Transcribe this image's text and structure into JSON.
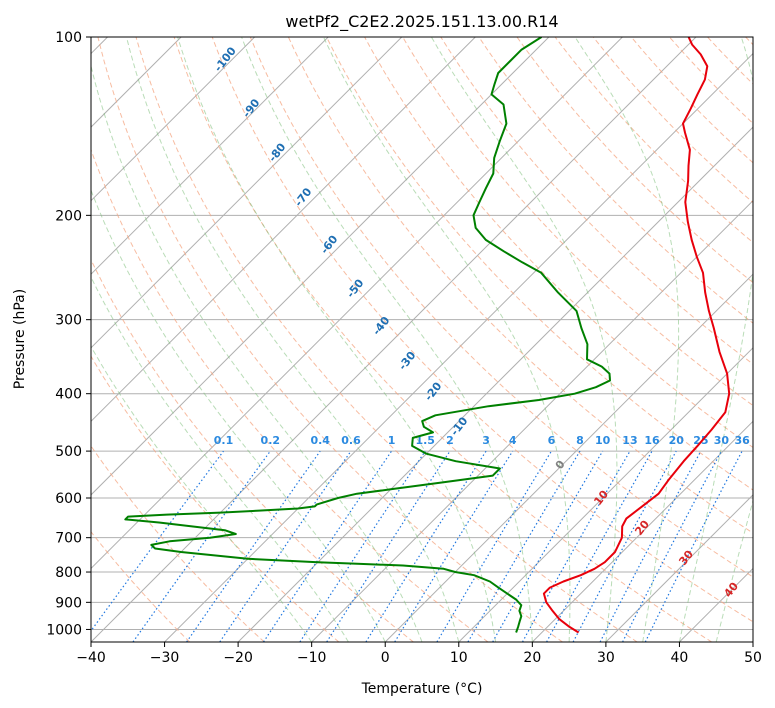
{
  "chart_data": {
    "type": "line",
    "title": "wetPf2_C2E2.2025.151.13.00.R14",
    "xlabel": "Temperature (°C)",
    "ylabel": "Pressure (hPa)",
    "xlim": [
      -40,
      50
    ],
    "ylim": [
      1050,
      100
    ],
    "x_scale": "linear, skewed isotherms",
    "y_scale": "log",
    "grid": true,
    "x_ticks": [
      "−40",
      "−30",
      "−20",
      "−10",
      "0",
      "10",
      "20",
      "30",
      "40",
      "50"
    ],
    "y_ticks": [
      "100",
      "200",
      "300",
      "400",
      "500",
      "600",
      "700",
      "800",
      "900",
      "1000"
    ],
    "series": [
      {
        "color": "#e8000b",
        "points": [
          [
            1012,
            25
          ],
          [
            990,
            23
          ],
          [
            960,
            20.5
          ],
          [
            930,
            18.5
          ],
          [
            900,
            16.5
          ],
          [
            870,
            15
          ],
          [
            850,
            15
          ],
          [
            830,
            16
          ],
          [
            810,
            17.5
          ],
          [
            790,
            18.5
          ],
          [
            770,
            19
          ],
          [
            740,
            19
          ],
          [
            700,
            18
          ],
          [
            670,
            16.5
          ],
          [
            650,
            16
          ],
          [
            620,
            16.5
          ],
          [
            590,
            17
          ],
          [
            560,
            16.5
          ],
          [
            520,
            16
          ],
          [
            490,
            15.8
          ],
          [
            460,
            15.5
          ],
          [
            430,
            15
          ],
          [
            400,
            13
          ],
          [
            370,
            10
          ],
          [
            340,
            6
          ],
          [
            310,
            2
          ],
          [
            290,
            -1
          ],
          [
            270,
            -4
          ],
          [
            250,
            -7
          ],
          [
            235,
            -10
          ],
          [
            220,
            -13
          ],
          [
            205,
            -16
          ],
          [
            190,
            -19
          ],
          [
            175,
            -21.5
          ],
          [
            165,
            -23.5
          ],
          [
            155,
            -25.5
          ],
          [
            145,
            -28.5
          ],
          [
            140,
            -30
          ],
          [
            132,
            -31
          ],
          [
            125,
            -32
          ],
          [
            118,
            -33
          ],
          [
            112,
            -34.5
          ],
          [
            107,
            -37
          ],
          [
            103,
            -39.5
          ],
          [
            100,
            -41
          ]
        ]
      },
      {
        "color": "#008000",
        "points": [
          [
            1012,
            16.5
          ],
          [
            990,
            16
          ],
          [
            970,
            15.5
          ],
          [
            950,
            15
          ],
          [
            930,
            14
          ],
          [
            910,
            13.5
          ],
          [
            890,
            12
          ],
          [
            870,
            10
          ],
          [
            850,
            8
          ],
          [
            830,
            6
          ],
          [
            810,
            3
          ],
          [
            800,
            0
          ],
          [
            790,
            -2
          ],
          [
            780,
            -8
          ],
          [
            775,
            -14
          ],
          [
            770,
            -20
          ],
          [
            760,
            -30
          ],
          [
            750,
            -35
          ],
          [
            740,
            -40
          ],
          [
            730,
            -44
          ],
          [
            720,
            -45
          ],
          [
            710,
            -43
          ],
          [
            700,
            -38
          ],
          [
            690,
            -35
          ],
          [
            680,
            -37
          ],
          [
            670,
            -42
          ],
          [
            660,
            -47
          ],
          [
            652,
            -52
          ],
          [
            645,
            -52
          ],
          [
            640,
            -47
          ],
          [
            635,
            -40
          ],
          [
            630,
            -35
          ],
          [
            625,
            -30
          ],
          [
            620,
            -28
          ],
          [
            615,
            -28
          ],
          [
            600,
            -26
          ],
          [
            590,
            -24
          ],
          [
            580,
            -20
          ],
          [
            565,
            -14
          ],
          [
            550,
            -8
          ],
          [
            535,
            -8
          ],
          [
            520,
            -15
          ],
          [
            505,
            -20
          ],
          [
            490,
            -23
          ],
          [
            475,
            -24
          ],
          [
            465,
            -22
          ],
          [
            455,
            -24
          ],
          [
            445,
            -25
          ],
          [
            435,
            -24
          ],
          [
            420,
            -18
          ],
          [
            410,
            -12
          ],
          [
            400,
            -8
          ],
          [
            390,
            -6
          ],
          [
            380,
            -5
          ],
          [
            370,
            -6
          ],
          [
            360,
            -8
          ],
          [
            350,
            -11
          ],
          [
            330,
            -13
          ],
          [
            310,
            -16
          ],
          [
            290,
            -19
          ],
          [
            270,
            -24
          ],
          [
            250,
            -29
          ],
          [
            240,
            -33
          ],
          [
            230,
            -37
          ],
          [
            220,
            -41
          ],
          [
            210,
            -44
          ],
          [
            200,
            -46
          ],
          [
            190,
            -47
          ],
          [
            180,
            -48
          ],
          [
            170,
            -49
          ],
          [
            160,
            -51
          ],
          [
            150,
            -52.5
          ],
          [
            140,
            -54
          ],
          [
            130,
            -57
          ],
          [
            125,
            -60
          ],
          [
            120,
            -61
          ],
          [
            115,
            -62
          ],
          [
            110,
            -62
          ],
          [
            105,
            -62
          ],
          [
            100,
            -61
          ]
        ]
      }
    ],
    "dry_adiabat_labels": [
      "-100",
      "-90",
      "-80",
      "-70",
      "-60",
      "-50",
      "-40",
      "-30",
      "-20",
      "-10"
    ],
    "moist_adiabat_labels": [
      "0",
      "10",
      "20",
      "30",
      "40"
    ],
    "mixing_ratio_labels": [
      "0.1",
      "0.2",
      "0.4",
      "0.6",
      "1",
      "1.5",
      "2",
      "3",
      "4",
      "6",
      "8",
      "10",
      "13",
      "16",
      "20",
      "25",
      "30",
      "36"
    ]
  }
}
